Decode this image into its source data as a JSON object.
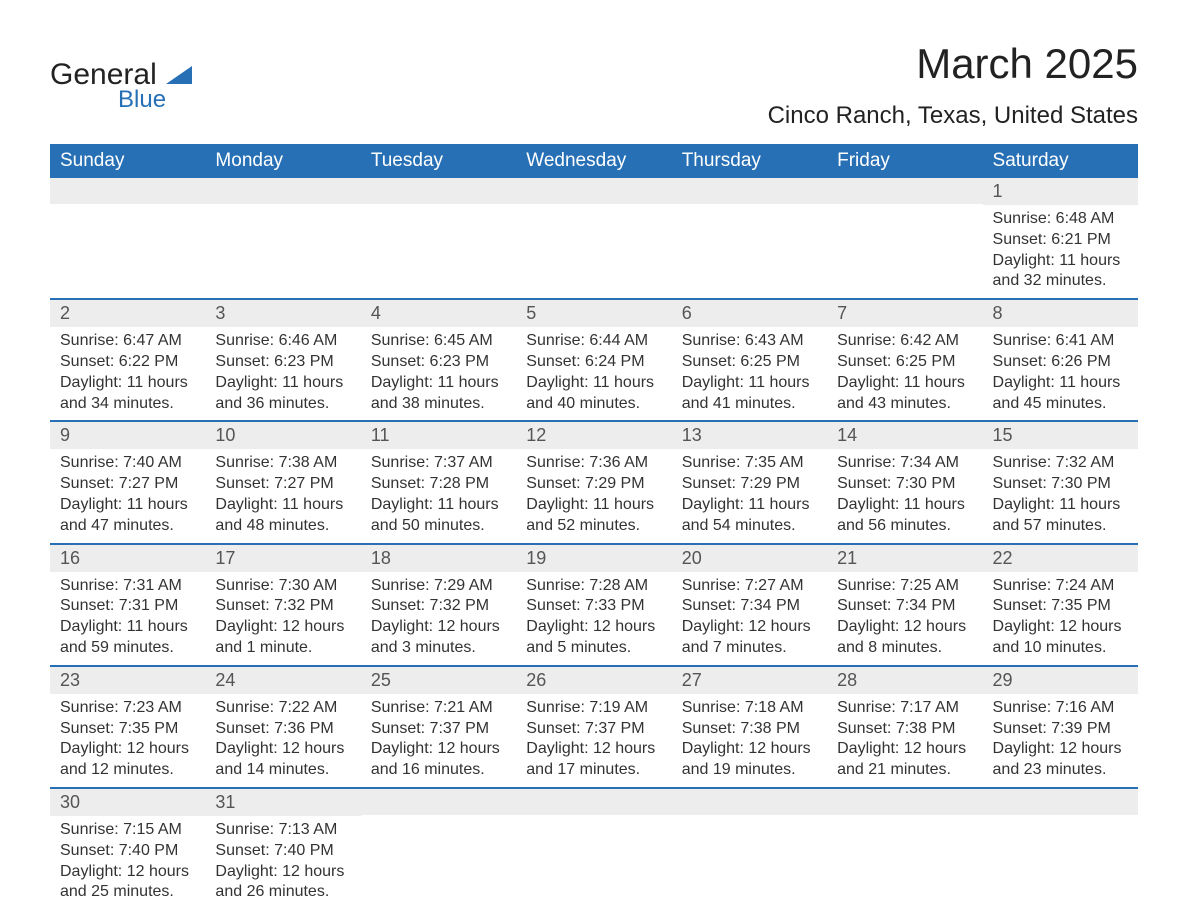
{
  "brand": {
    "main": "General",
    "sub": "Blue",
    "accent_color": "#2770b5"
  },
  "title": "March 2025",
  "location": "Cinco Ranch, Texas, United States",
  "weekday_headers": [
    "Sunday",
    "Monday",
    "Tuesday",
    "Wednesday",
    "Thursday",
    "Friday",
    "Saturday"
  ],
  "table_style": {
    "header_bg": "#2770b5",
    "header_text_color": "#ffffff",
    "row_separator_color": "#2770b5",
    "daynum_bg": "#ededed",
    "body_text_color": "#333333",
    "header_fontsize": 19,
    "daynum_fontsize": 18,
    "content_fontsize": 16
  },
  "weeks": [
    [
      {
        "day": "",
        "sunrise": "",
        "sunset": "",
        "daylight1": "",
        "daylight2": ""
      },
      {
        "day": "",
        "sunrise": "",
        "sunset": "",
        "daylight1": "",
        "daylight2": ""
      },
      {
        "day": "",
        "sunrise": "",
        "sunset": "",
        "daylight1": "",
        "daylight2": ""
      },
      {
        "day": "",
        "sunrise": "",
        "sunset": "",
        "daylight1": "",
        "daylight2": ""
      },
      {
        "day": "",
        "sunrise": "",
        "sunset": "",
        "daylight1": "",
        "daylight2": ""
      },
      {
        "day": "",
        "sunrise": "",
        "sunset": "",
        "daylight1": "",
        "daylight2": ""
      },
      {
        "day": "1",
        "sunrise": "Sunrise: 6:48 AM",
        "sunset": "Sunset: 6:21 PM",
        "daylight1": "Daylight: 11 hours",
        "daylight2": "and 32 minutes."
      }
    ],
    [
      {
        "day": "2",
        "sunrise": "Sunrise: 6:47 AM",
        "sunset": "Sunset: 6:22 PM",
        "daylight1": "Daylight: 11 hours",
        "daylight2": "and 34 minutes."
      },
      {
        "day": "3",
        "sunrise": "Sunrise: 6:46 AM",
        "sunset": "Sunset: 6:23 PM",
        "daylight1": "Daylight: 11 hours",
        "daylight2": "and 36 minutes."
      },
      {
        "day": "4",
        "sunrise": "Sunrise: 6:45 AM",
        "sunset": "Sunset: 6:23 PM",
        "daylight1": "Daylight: 11 hours",
        "daylight2": "and 38 minutes."
      },
      {
        "day": "5",
        "sunrise": "Sunrise: 6:44 AM",
        "sunset": "Sunset: 6:24 PM",
        "daylight1": "Daylight: 11 hours",
        "daylight2": "and 40 minutes."
      },
      {
        "day": "6",
        "sunrise": "Sunrise: 6:43 AM",
        "sunset": "Sunset: 6:25 PM",
        "daylight1": "Daylight: 11 hours",
        "daylight2": "and 41 minutes."
      },
      {
        "day": "7",
        "sunrise": "Sunrise: 6:42 AM",
        "sunset": "Sunset: 6:25 PM",
        "daylight1": "Daylight: 11 hours",
        "daylight2": "and 43 minutes."
      },
      {
        "day": "8",
        "sunrise": "Sunrise: 6:41 AM",
        "sunset": "Sunset: 6:26 PM",
        "daylight1": "Daylight: 11 hours",
        "daylight2": "and 45 minutes."
      }
    ],
    [
      {
        "day": "9",
        "sunrise": "Sunrise: 7:40 AM",
        "sunset": "Sunset: 7:27 PM",
        "daylight1": "Daylight: 11 hours",
        "daylight2": "and 47 minutes."
      },
      {
        "day": "10",
        "sunrise": "Sunrise: 7:38 AM",
        "sunset": "Sunset: 7:27 PM",
        "daylight1": "Daylight: 11 hours",
        "daylight2": "and 48 minutes."
      },
      {
        "day": "11",
        "sunrise": "Sunrise: 7:37 AM",
        "sunset": "Sunset: 7:28 PM",
        "daylight1": "Daylight: 11 hours",
        "daylight2": "and 50 minutes."
      },
      {
        "day": "12",
        "sunrise": "Sunrise: 7:36 AM",
        "sunset": "Sunset: 7:29 PM",
        "daylight1": "Daylight: 11 hours",
        "daylight2": "and 52 minutes."
      },
      {
        "day": "13",
        "sunrise": "Sunrise: 7:35 AM",
        "sunset": "Sunset: 7:29 PM",
        "daylight1": "Daylight: 11 hours",
        "daylight2": "and 54 minutes."
      },
      {
        "day": "14",
        "sunrise": "Sunrise: 7:34 AM",
        "sunset": "Sunset: 7:30 PM",
        "daylight1": "Daylight: 11 hours",
        "daylight2": "and 56 minutes."
      },
      {
        "day": "15",
        "sunrise": "Sunrise: 7:32 AM",
        "sunset": "Sunset: 7:30 PM",
        "daylight1": "Daylight: 11 hours",
        "daylight2": "and 57 minutes."
      }
    ],
    [
      {
        "day": "16",
        "sunrise": "Sunrise: 7:31 AM",
        "sunset": "Sunset: 7:31 PM",
        "daylight1": "Daylight: 11 hours",
        "daylight2": "and 59 minutes."
      },
      {
        "day": "17",
        "sunrise": "Sunrise: 7:30 AM",
        "sunset": "Sunset: 7:32 PM",
        "daylight1": "Daylight: 12 hours",
        "daylight2": "and 1 minute."
      },
      {
        "day": "18",
        "sunrise": "Sunrise: 7:29 AM",
        "sunset": "Sunset: 7:32 PM",
        "daylight1": "Daylight: 12 hours",
        "daylight2": "and 3 minutes."
      },
      {
        "day": "19",
        "sunrise": "Sunrise: 7:28 AM",
        "sunset": "Sunset: 7:33 PM",
        "daylight1": "Daylight: 12 hours",
        "daylight2": "and 5 minutes."
      },
      {
        "day": "20",
        "sunrise": "Sunrise: 7:27 AM",
        "sunset": "Sunset: 7:34 PM",
        "daylight1": "Daylight: 12 hours",
        "daylight2": "and 7 minutes."
      },
      {
        "day": "21",
        "sunrise": "Sunrise: 7:25 AM",
        "sunset": "Sunset: 7:34 PM",
        "daylight1": "Daylight: 12 hours",
        "daylight2": "and 8 minutes."
      },
      {
        "day": "22",
        "sunrise": "Sunrise: 7:24 AM",
        "sunset": "Sunset: 7:35 PM",
        "daylight1": "Daylight: 12 hours",
        "daylight2": "and 10 minutes."
      }
    ],
    [
      {
        "day": "23",
        "sunrise": "Sunrise: 7:23 AM",
        "sunset": "Sunset: 7:35 PM",
        "daylight1": "Daylight: 12 hours",
        "daylight2": "and 12 minutes."
      },
      {
        "day": "24",
        "sunrise": "Sunrise: 7:22 AM",
        "sunset": "Sunset: 7:36 PM",
        "daylight1": "Daylight: 12 hours",
        "daylight2": "and 14 minutes."
      },
      {
        "day": "25",
        "sunrise": "Sunrise: 7:21 AM",
        "sunset": "Sunset: 7:37 PM",
        "daylight1": "Daylight: 12 hours",
        "daylight2": "and 16 minutes."
      },
      {
        "day": "26",
        "sunrise": "Sunrise: 7:19 AM",
        "sunset": "Sunset: 7:37 PM",
        "daylight1": "Daylight: 12 hours",
        "daylight2": "and 17 minutes."
      },
      {
        "day": "27",
        "sunrise": "Sunrise: 7:18 AM",
        "sunset": "Sunset: 7:38 PM",
        "daylight1": "Daylight: 12 hours",
        "daylight2": "and 19 minutes."
      },
      {
        "day": "28",
        "sunrise": "Sunrise: 7:17 AM",
        "sunset": "Sunset: 7:38 PM",
        "daylight1": "Daylight: 12 hours",
        "daylight2": "and 21 minutes."
      },
      {
        "day": "29",
        "sunrise": "Sunrise: 7:16 AM",
        "sunset": "Sunset: 7:39 PM",
        "daylight1": "Daylight: 12 hours",
        "daylight2": "and 23 minutes."
      }
    ],
    [
      {
        "day": "30",
        "sunrise": "Sunrise: 7:15 AM",
        "sunset": "Sunset: 7:40 PM",
        "daylight1": "Daylight: 12 hours",
        "daylight2": "and 25 minutes."
      },
      {
        "day": "31",
        "sunrise": "Sunrise: 7:13 AM",
        "sunset": "Sunset: 7:40 PM",
        "daylight1": "Daylight: 12 hours",
        "daylight2": "and 26 minutes."
      },
      {
        "day": "",
        "sunrise": "",
        "sunset": "",
        "daylight1": "",
        "daylight2": ""
      },
      {
        "day": "",
        "sunrise": "",
        "sunset": "",
        "daylight1": "",
        "daylight2": ""
      },
      {
        "day": "",
        "sunrise": "",
        "sunset": "",
        "daylight1": "",
        "daylight2": ""
      },
      {
        "day": "",
        "sunrise": "",
        "sunset": "",
        "daylight1": "",
        "daylight2": ""
      },
      {
        "day": "",
        "sunrise": "",
        "sunset": "",
        "daylight1": "",
        "daylight2": ""
      }
    ]
  ]
}
